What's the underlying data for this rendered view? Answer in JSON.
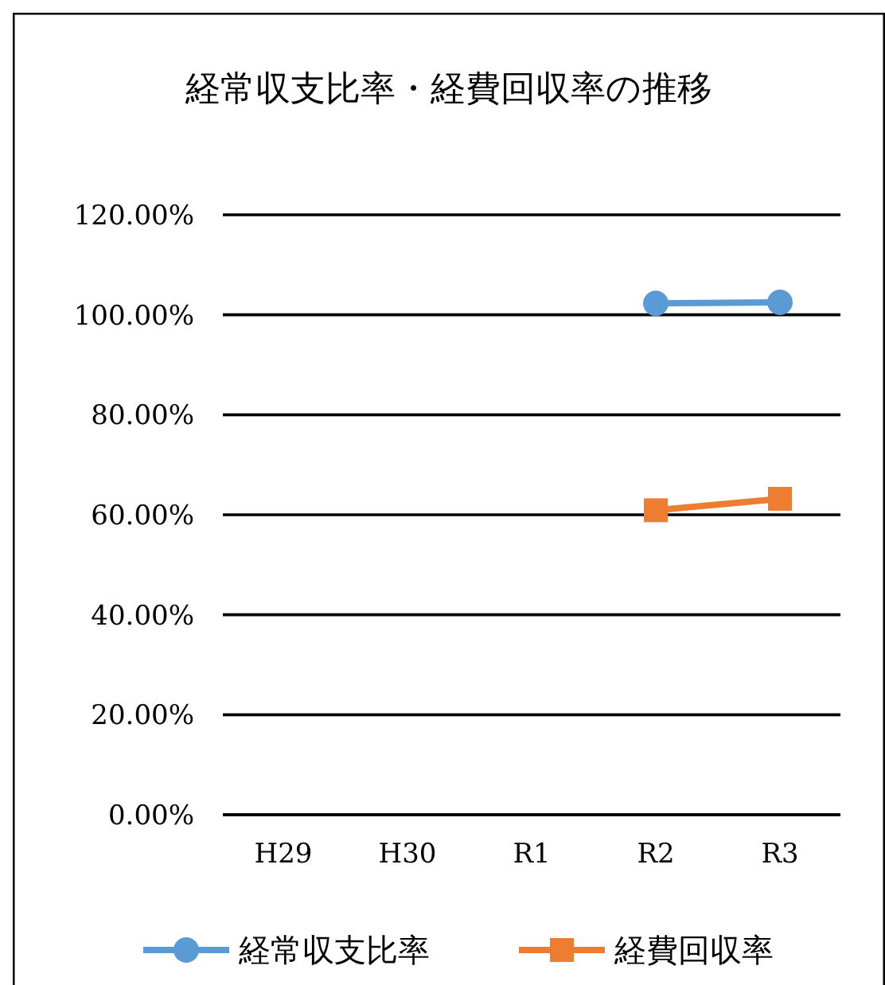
{
  "chart_data": {
    "type": "line",
    "title": "経常収支比率・経費回収率の推移",
    "categories": [
      "H29",
      "H30",
      "R1",
      "R2",
      "R3"
    ],
    "series": [
      {
        "name": "経常収支比率",
        "color": "#5b9bd5",
        "marker": "circle",
        "values": [
          null,
          null,
          null,
          102.3,
          102.5
        ]
      },
      {
        "name": "経費回収率",
        "color": "#ed7d31",
        "marker": "square",
        "values": [
          null,
          null,
          null,
          60.9,
          63.2
        ]
      }
    ],
    "ylim": [
      0,
      120
    ],
    "yticks": [
      {
        "value": 0,
        "label": "0.00%"
      },
      {
        "value": 20,
        "label": "20.00%"
      },
      {
        "value": 40,
        "label": "40.00%"
      },
      {
        "value": 60,
        "label": "60.00%"
      },
      {
        "value": 80,
        "label": "80.00%"
      },
      {
        "value": 100,
        "label": "100.00%"
      },
      {
        "value": 120,
        "label": "120.00%"
      }
    ],
    "grid": "y",
    "legend": "bottom"
  }
}
